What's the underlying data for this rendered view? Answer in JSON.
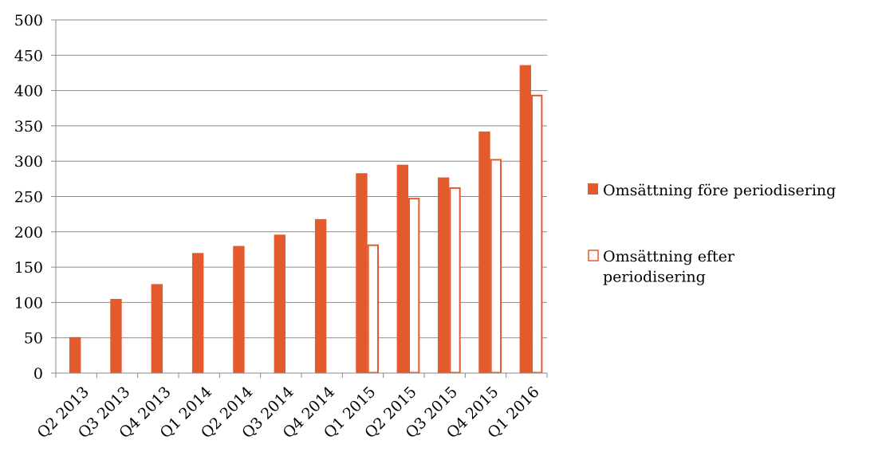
{
  "chart_data": {
    "type": "bar",
    "categories": [
      "Q2 2013",
      "Q3 2013",
      "Q4 2013",
      "Q1 2014",
      "Q2 2014",
      "Q3 2014",
      "Q4 2014",
      "Q1 2015",
      "Q2 2015",
      "Q3 2015",
      "Q4 2015",
      "Q1 2016"
    ],
    "series": [
      {
        "name": "Omsättning före periodisering",
        "name_lines": [
          "Omsättning före periodisering"
        ],
        "style": "filled",
        "color": "#E35A2C",
        "values": [
          51,
          105,
          126,
          170,
          180,
          196,
          218,
          283,
          295,
          277,
          342,
          436
        ]
      },
      {
        "name": "Omsättning efter periodisering",
        "name_lines": [
          "Omsättning efter",
          "periodisering"
        ],
        "style": "outline",
        "color": "#E35A2C",
        "values": [
          null,
          null,
          null,
          null,
          null,
          null,
          null,
          181,
          247,
          262,
          302,
          393
        ]
      }
    ],
    "ylim": [
      0,
      500
    ],
    "yticks": [
      0,
      50,
      100,
      150,
      200,
      250,
      300,
      350,
      400,
      450,
      500
    ],
    "grid": true,
    "legend": "right",
    "title": "",
    "xlabel": "",
    "ylabel": ""
  }
}
